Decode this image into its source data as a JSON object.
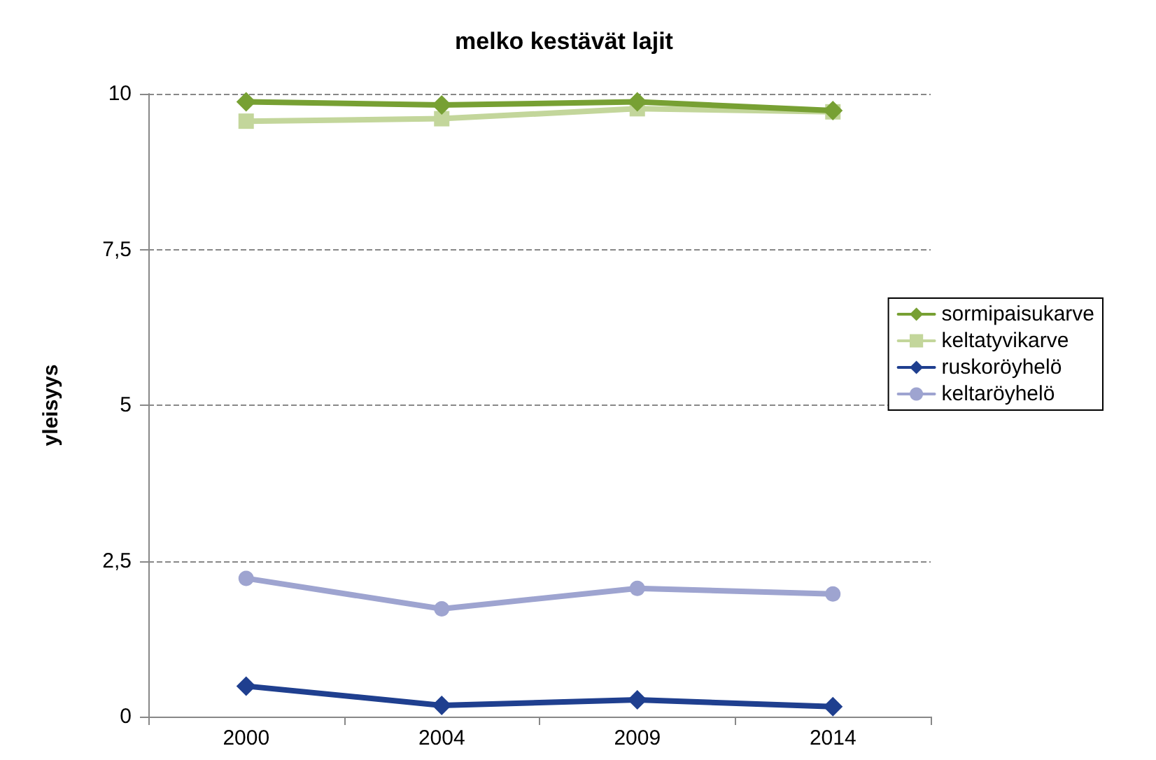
{
  "chart_data": {
    "type": "line",
    "title": "melko kestävät lajit",
    "ylabel": "yleisyys",
    "categories": [
      "2000",
      "2004",
      "2009",
      "2014"
    ],
    "series": [
      {
        "name": "sormipaisukarve",
        "color": "#77a033",
        "marker": "diamond",
        "values": [
          9.87,
          9.82,
          9.87,
          9.73
        ]
      },
      {
        "name": "keltatyvikarve",
        "color": "#c3d69b",
        "marker": "square",
        "values": [
          9.56,
          9.6,
          9.76,
          9.71
        ]
      },
      {
        "name": "ruskoröyhelö",
        "color": "#1f3f8f",
        "marker": "diamond",
        "values": [
          0.49,
          0.18,
          0.27,
          0.16
        ]
      },
      {
        "name": "keltaröyhelö",
        "color": "#9ea4d0",
        "marker": "circle",
        "values": [
          2.22,
          1.73,
          2.06,
          1.97
        ]
      }
    ],
    "ylim": [
      0,
      10
    ],
    "yticks": [
      0,
      {
        "value": 2.5,
        "label": "2,5"
      },
      5,
      {
        "value": 7.5,
        "label": "7,5"
      },
      10
    ],
    "grid": "y",
    "legend": "right"
  }
}
